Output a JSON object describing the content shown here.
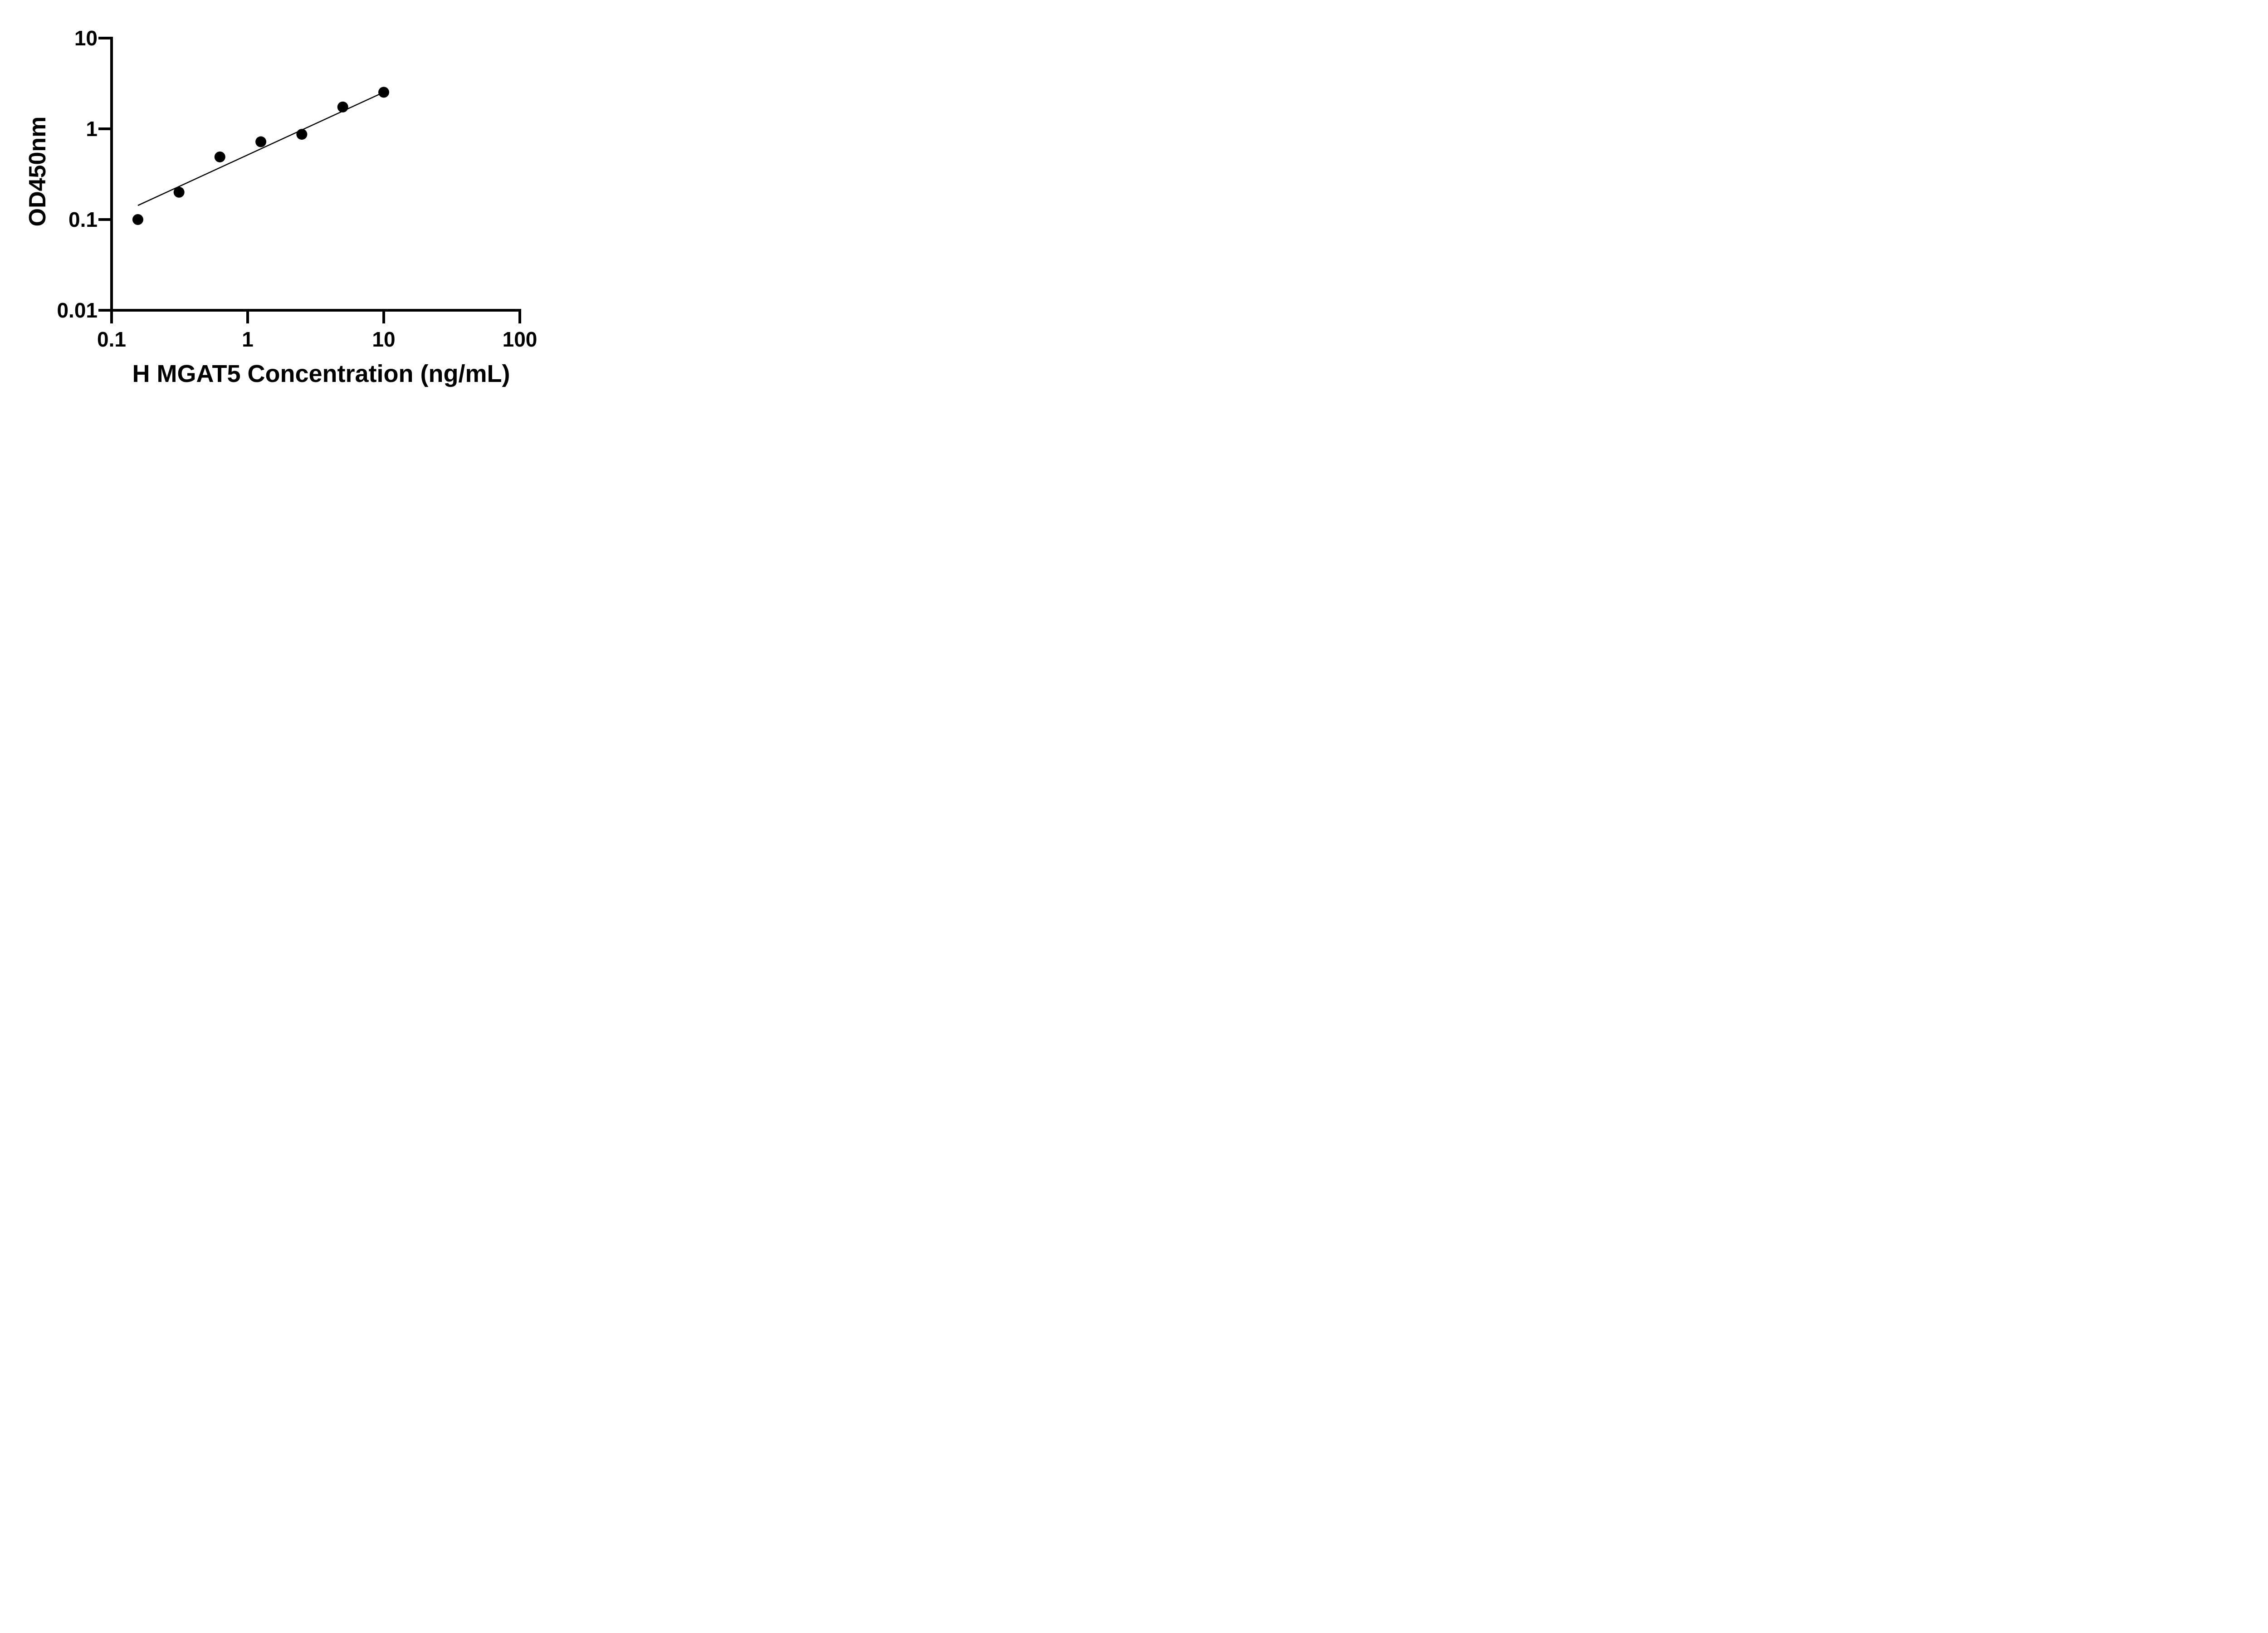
{
  "figure": {
    "background": "#ffffff",
    "ink": "#000000"
  },
  "chart_data": {
    "type": "scatter",
    "title": "",
    "xlabel": "H MGAT5 Concentration (ng/mL)",
    "ylabel": "OD450nm",
    "x_scale": "log10",
    "y_scale": "log10",
    "xlim": [
      0.1,
      100
    ],
    "ylim": [
      0.01,
      10
    ],
    "grid": false,
    "legend_position": null,
    "x_ticks": [
      {
        "v": 0.1,
        "label": "0.1"
      },
      {
        "v": 1,
        "label": "1"
      },
      {
        "v": 10,
        "label": "10"
      },
      {
        "v": 100,
        "label": "100"
      }
    ],
    "y_ticks": [
      {
        "v": 10,
        "label": "10"
      },
      {
        "v": 1,
        "label": "1"
      },
      {
        "v": 0.1,
        "label": "0.1"
      },
      {
        "v": 0.01,
        "label": "0.01"
      }
    ],
    "series": [
      {
        "name": "standard-points",
        "type": "scatter",
        "marker": "filled-circle",
        "color": "#000000",
        "points": [
          {
            "x": 0.156,
            "y": 0.1
          },
          {
            "x": 0.313,
            "y": 0.2
          },
          {
            "x": 0.625,
            "y": 0.49
          },
          {
            "x": 1.25,
            "y": 0.72
          },
          {
            "x": 2.5,
            "y": 0.87
          },
          {
            "x": 5,
            "y": 1.74
          },
          {
            "x": 10,
            "y": 2.53
          }
        ]
      },
      {
        "name": "fit-line",
        "type": "line",
        "color": "#000000",
        "points": [
          {
            "x": 0.156,
            "y": 0.143
          },
          {
            "x": 10,
            "y": 2.53
          }
        ]
      }
    ]
  }
}
